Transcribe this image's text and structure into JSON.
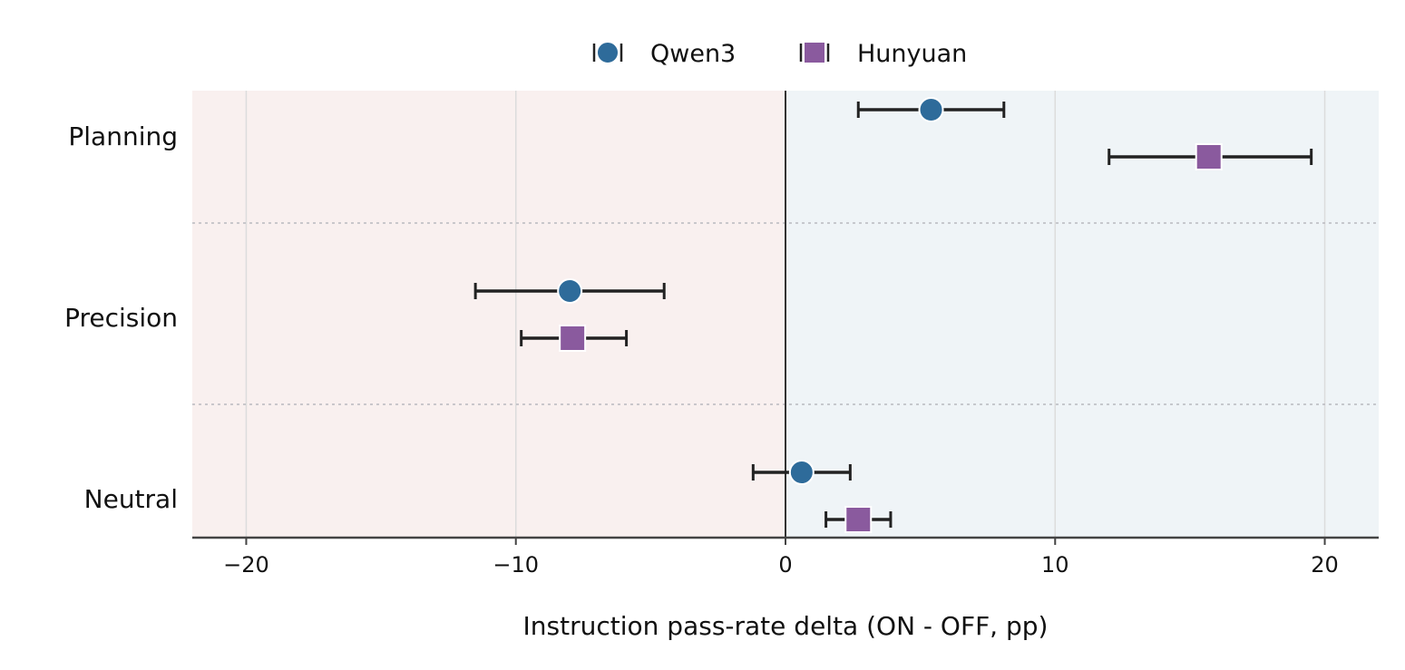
{
  "chart_data": {
    "type": "scatter",
    "subtype": "dot-plot-with-error-bars",
    "title": "",
    "xlabel": "Instruction pass-rate delta (ON - OFF, pp)",
    "ylabel": "",
    "xlim": [
      -22,
      22
    ],
    "xticks": [
      -20,
      -10,
      0,
      10,
      20
    ],
    "xtick_labels": [
      "−20",
      "−10",
      "0",
      "10",
      "20"
    ],
    "categories": [
      "Planning",
      "Precision",
      "Neutral"
    ],
    "legend_position": "top-center",
    "grid": "vertical",
    "regions": [
      {
        "x_range": [
          -22,
          0
        ],
        "color": "#f9f0ef"
      },
      {
        "x_range": [
          0,
          22
        ],
        "color": "#eff4f7"
      }
    ],
    "series": [
      {
        "name": "Qwen3",
        "marker": "circle",
        "color": "#2e6b9a",
        "values": [
          5.4,
          -8.0,
          0.6
        ],
        "ci_low": [
          2.7,
          -11.5,
          -1.2
        ],
        "ci_high": [
          8.1,
          -4.5,
          2.4
        ]
      },
      {
        "name": "Hunyuan",
        "marker": "square",
        "color": "#8a5a9e",
        "values": [
          15.7,
          -7.9,
          2.7
        ],
        "ci_low": [
          12.0,
          -9.8,
          1.5
        ],
        "ci_high": [
          19.5,
          -5.9,
          3.9
        ]
      }
    ]
  }
}
